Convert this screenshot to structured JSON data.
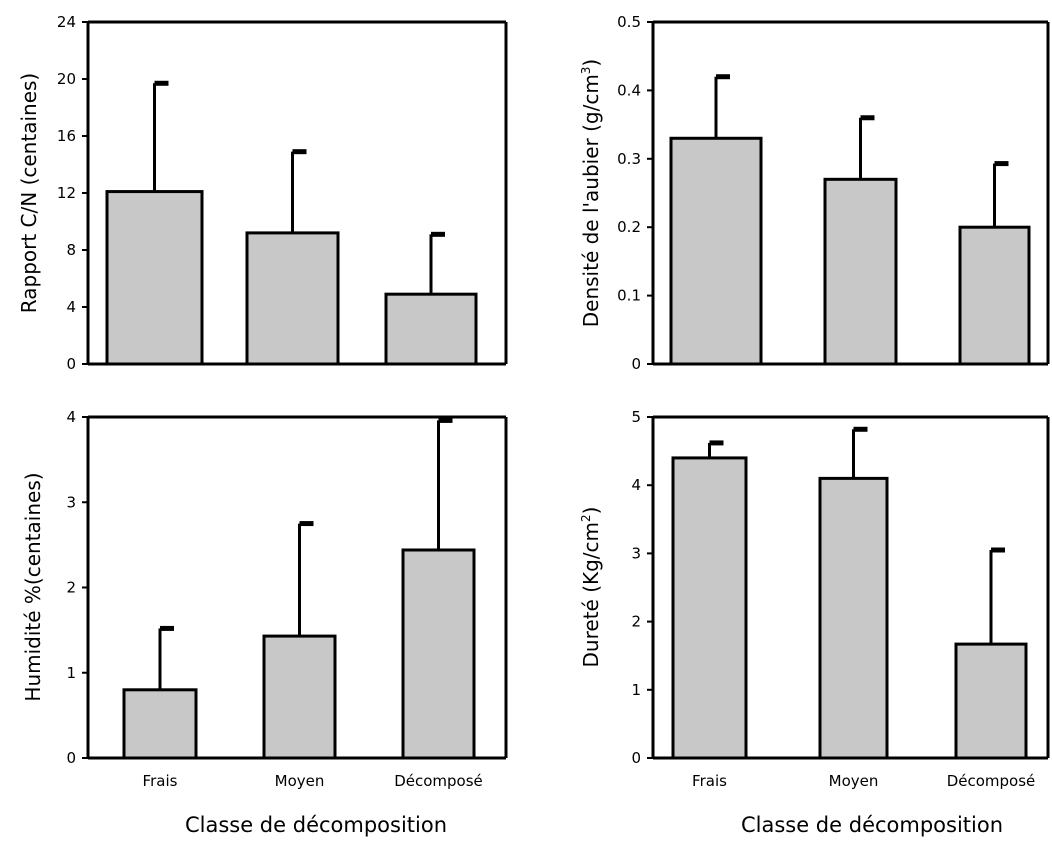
{
  "figure": {
    "xlabel_left": "Classe de décomposition",
    "xlabel_right": "Classe de décomposition",
    "bar_color": "#c8c8c8",
    "axis_color": "#000000"
  },
  "chart_data": [
    {
      "type": "bar",
      "panel": "top-left",
      "categories": [
        "Frais",
        "Moyen",
        "Décomposé"
      ],
      "show_category_labels": false,
      "values": [
        12.1,
        9.2,
        4.9
      ],
      "errors": [
        7.6,
        5.7,
        4.2
      ],
      "ylabel": "Rapport C/N (centaines)",
      "ylabel_sup": "",
      "ylabel_after": "",
      "ylim": [
        0,
        24
      ],
      "yticks": [
        0,
        4,
        8,
        12,
        16,
        20,
        24
      ],
      "ytick_labels": [
        "0",
        "4",
        "8",
        "12",
        "16",
        "20",
        "24"
      ],
      "grid": false
    },
    {
      "type": "bar",
      "panel": "top-right",
      "categories": [
        "Frais",
        "Moyen",
        "Décomposé"
      ],
      "show_category_labels": false,
      "values": [
        0.33,
        0.27,
        0.2
      ],
      "errors": [
        0.09,
        0.09,
        0.093
      ],
      "ylabel": "Densité de l'aubier (g/cm",
      "ylabel_sup": "3",
      "ylabel_after": ")",
      "ylim": [
        0,
        0.5
      ],
      "yticks": [
        0,
        0.1,
        0.2,
        0.3,
        0.4,
        0.5
      ],
      "ytick_labels": [
        "0",
        "0.1",
        "0.2",
        "0.3",
        "0.4",
        "0.5"
      ],
      "grid": false
    },
    {
      "type": "bar",
      "panel": "bottom-left",
      "categories": [
        "Frais",
        "Moyen",
        "Décomposé"
      ],
      "show_category_labels": true,
      "values": [
        0.8,
        1.43,
        2.44
      ],
      "errors": [
        0.72,
        1.32,
        1.52
      ],
      "ylabel": "Humidité %(centaines)",
      "ylabel_sup": "",
      "ylabel_after": "",
      "ylim": [
        0,
        4
      ],
      "yticks": [
        0,
        1,
        2,
        3,
        4
      ],
      "ytick_labels": [
        "0",
        "1",
        "2",
        "3",
        "4"
      ],
      "grid": false
    },
    {
      "type": "bar",
      "panel": "bottom-right",
      "categories": [
        "Frais",
        "Moyen",
        "Décomposé"
      ],
      "show_category_labels": true,
      "values": [
        4.4,
        4.1,
        1.67
      ],
      "errors": [
        0.22,
        0.72,
        1.38
      ],
      "ylabel": "Dureté (Kg/cm",
      "ylabel_sup": "2",
      "ylabel_after": ")",
      "ylim": [
        0,
        5
      ],
      "yticks": [
        0,
        1,
        2,
        3,
        4,
        5
      ],
      "ytick_labels": [
        "0",
        "1",
        "2",
        "3",
        "4",
        "5"
      ],
      "grid": false
    }
  ]
}
